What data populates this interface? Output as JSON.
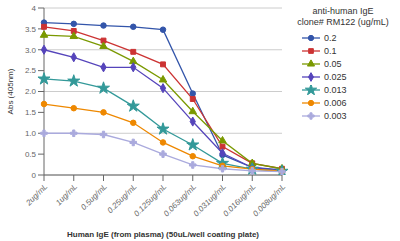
{
  "chart_data": {
    "type": "line",
    "xlabel": "Human IgE (from plasma) (50uL/well coating plate)",
    "ylabel": "Abs (405nm)",
    "legend_title": "anti-human IgE\nclone# RM122 (ug/mL)",
    "categories": [
      "2ug/mL",
      "1ug/mL",
      "0.5ug/mL",
      "0.25ug/mL",
      "0.125ug/mL",
      "0.063ug/mL",
      "0.031ug/mL",
      "0.016ug/mL",
      "0.008ug/mL"
    ],
    "ylim": [
      0,
      4
    ],
    "yticks": [
      0,
      0.5,
      {
        "value": 1.0,
        "label": "1.0"
      },
      1.5,
      {
        "value": 2.0,
        "label": "2.0"
      },
      2.5,
      {
        "value": 3.0,
        "label": "3.0"
      },
      3.5,
      4
    ],
    "grid": true,
    "legend": "right",
    "series": [
      {
        "name": "0.2",
        "color": "#3355aa",
        "marker": "circle",
        "values": [
          3.65,
          3.62,
          3.58,
          3.55,
          3.48,
          1.95,
          0.48,
          0.18,
          0.12
        ]
      },
      {
        "name": "0.1",
        "color": "#cc3333",
        "marker": "square",
        "values": [
          3.55,
          3.45,
          3.22,
          2.95,
          2.65,
          1.82,
          0.68,
          0.28,
          0.15
        ]
      },
      {
        "name": "0.05",
        "color": "#7a9900",
        "marker": "triangle",
        "values": [
          3.35,
          3.32,
          3.08,
          2.72,
          2.28,
          1.52,
          0.82,
          0.28,
          0.15
        ]
      },
      {
        "name": "0.025",
        "color": "#5544bb",
        "marker": "diamond",
        "values": [
          3.0,
          2.82,
          2.58,
          2.58,
          2.08,
          1.28,
          0.52,
          0.18,
          0.1
        ]
      },
      {
        "name": "0.013",
        "color": "#339999",
        "marker": "star",
        "values": [
          2.3,
          2.25,
          2.08,
          1.65,
          1.1,
          0.72,
          0.28,
          0.14,
          0.09
        ]
      },
      {
        "name": "0.006",
        "color": "#ee8800",
        "marker": "circle",
        "values": [
          1.7,
          1.6,
          1.5,
          1.25,
          0.78,
          0.45,
          0.22,
          0.14,
          0.09
        ]
      },
      {
        "name": "0.003",
        "color": "#aaaadd",
        "marker": "plus",
        "values": [
          1.0,
          1.0,
          0.97,
          0.78,
          0.5,
          0.24,
          0.15,
          0.1,
          0.08
        ]
      }
    ]
  }
}
